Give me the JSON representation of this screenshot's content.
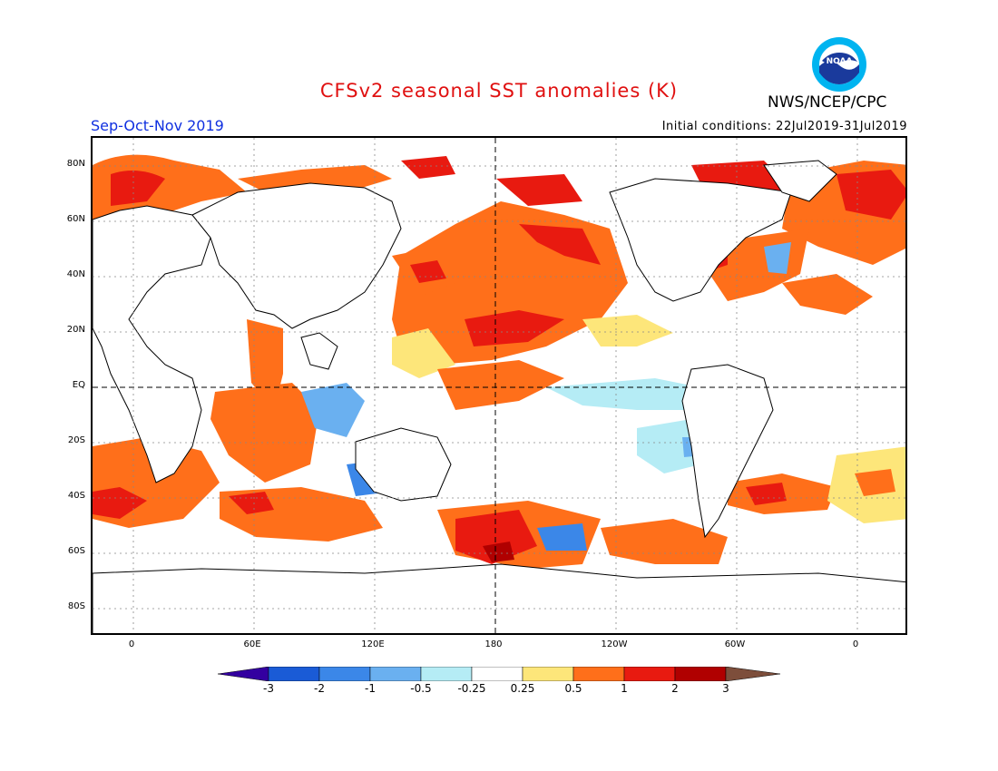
{
  "header": {
    "title": "CFSv2 seasonal SST anomalies (K)",
    "agency": "NWS/NCEP/CPC",
    "logo_text": "NOAA",
    "period": "Sep-Oct-Nov 2019",
    "initial_conditions": "Initial conditions: 22Jul2019-31Jul2019"
  },
  "map": {
    "lat_labels": [
      "80N",
      "60N",
      "40N",
      "20N",
      "EQ",
      "20S",
      "40S",
      "60S",
      "80S"
    ],
    "lon_labels": [
      "0",
      "60E",
      "120E",
      "180",
      "120W",
      "60W",
      "0"
    ],
    "lat_range": [
      -90,
      90
    ],
    "lon_range": [
      -20,
      365
    ]
  },
  "colorbar": {
    "labels": [
      "-3",
      "-2",
      "-1",
      "-0.5",
      "-0.25",
      "0.25",
      "0.5",
      "1",
      "2",
      "3"
    ],
    "colors": [
      "#3300a0",
      "#1a5bd6",
      "#3b87e8",
      "#6ab0f0",
      "#b5ecf5",
      "#ffffff",
      "#fde67a",
      "#ff6f1a",
      "#e81a10",
      "#b00000",
      "#7d4e3b"
    ]
  },
  "colors": {
    "title_red": "#e01010",
    "period_blue": "#1030e0"
  }
}
